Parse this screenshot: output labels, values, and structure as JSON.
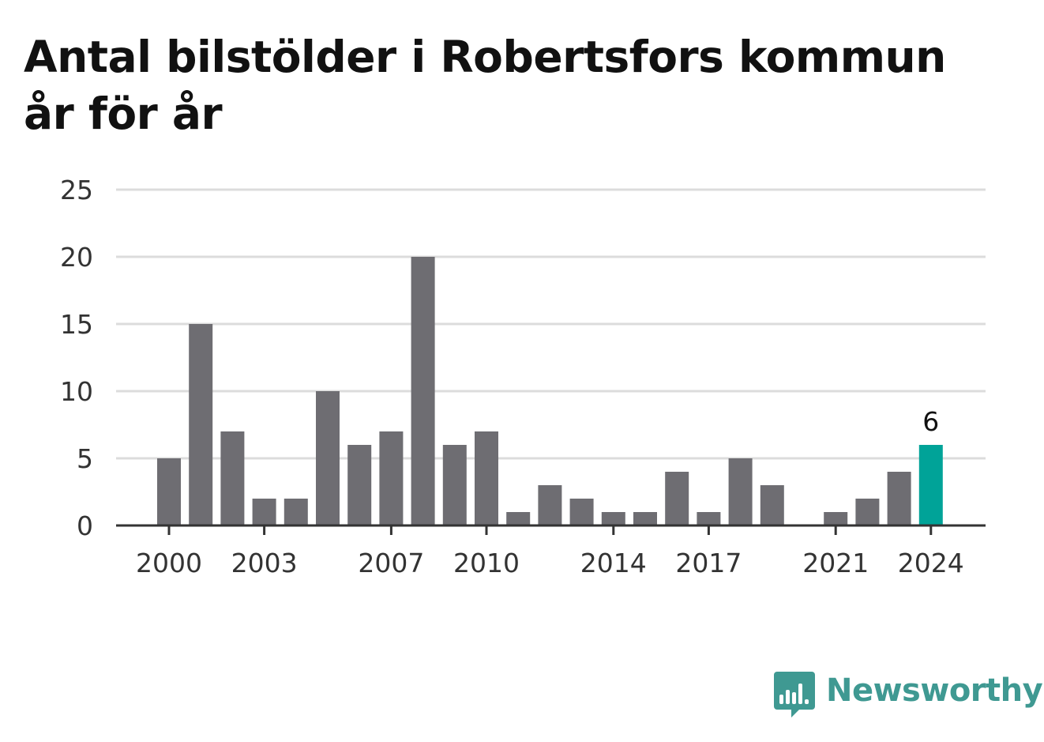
{
  "title": {
    "line1": "Antal bilstölder i Robertsfors kommun",
    "line2": "år för år"
  },
  "brand": {
    "name": "Newsworthy",
    "icon": "newsworthy-logo-icon"
  },
  "colors": {
    "bar": "#6e6d72",
    "highlight": "#00a398",
    "grid": "#dcdcdc",
    "axis": "#333333",
    "brand": "#3f9992"
  },
  "chart_data": {
    "type": "bar",
    "title": "Antal bilstölder i Robertsfors kommun år för år",
    "xlabel": "",
    "ylabel": "",
    "categories": [
      "2000",
      "2001",
      "2002",
      "2003",
      "2004",
      "2005",
      "2006",
      "2007",
      "2008",
      "2009",
      "2010",
      "2011",
      "2012",
      "2013",
      "2014",
      "2015",
      "2016",
      "2017",
      "2018",
      "2019",
      "2020",
      "2021",
      "2022",
      "2023",
      "2024"
    ],
    "values": [
      5,
      15,
      7,
      2,
      2,
      10,
      6,
      7,
      20,
      6,
      7,
      1,
      3,
      2,
      1,
      1,
      4,
      1,
      5,
      3,
      0,
      1,
      2,
      4,
      6
    ],
    "ylim": [
      0,
      25
    ],
    "yticks": [
      0,
      5,
      10,
      15,
      20,
      25
    ],
    "xtick_labels": [
      "2000",
      "2003",
      "2007",
      "2010",
      "2014",
      "2017",
      "2021",
      "2024"
    ],
    "highlight": {
      "category": "2024",
      "label": "6"
    },
    "grid": true,
    "legend": "none"
  }
}
